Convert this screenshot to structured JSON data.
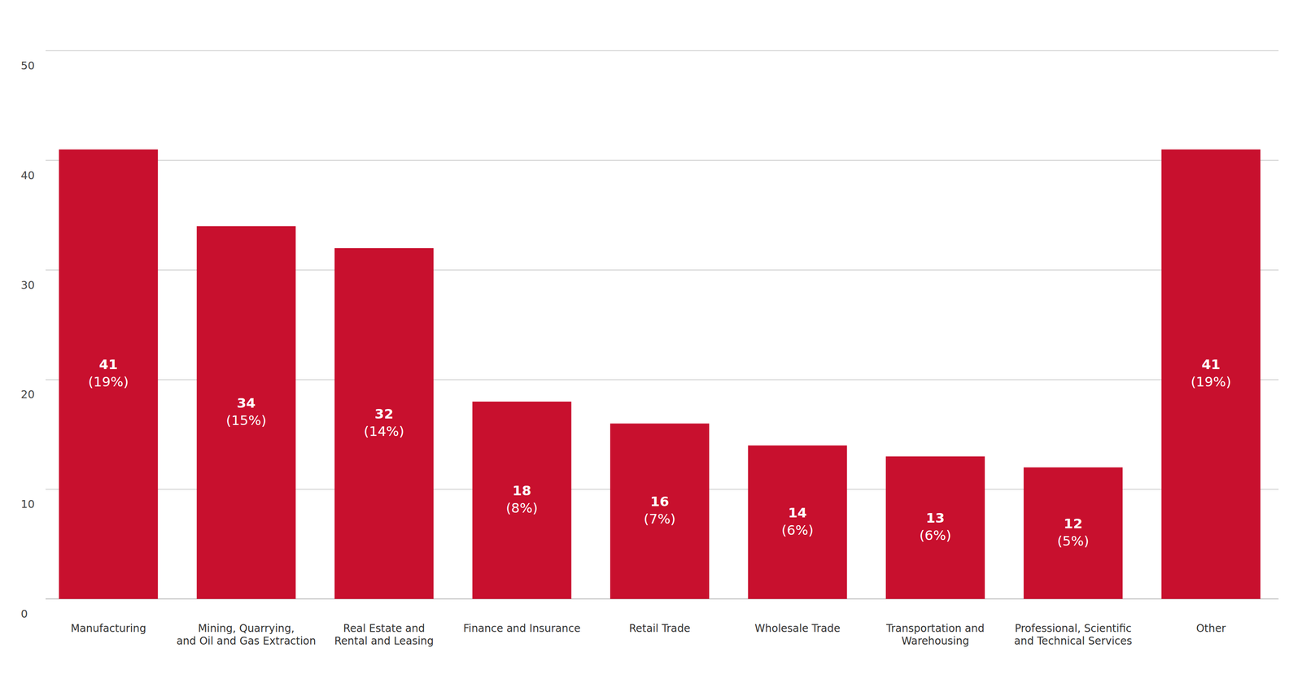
{
  "chart_data": {
    "type": "bar",
    "categories": [
      "Manufacturing",
      "Mining, Quarrying,\nand Oil and Gas Extraction",
      "Real Estate and\nRental and Leasing",
      "Finance and Insurance",
      "Retail Trade",
      "Wholesale Trade",
      "Transportation and\nWarehousing",
      "Professional, Scientific\nand Technical Services",
      "Other"
    ],
    "values": [
      41,
      34,
      32,
      18,
      16,
      14,
      13,
      12,
      41
    ],
    "share_labels": [
      "(19%)",
      "(15%)",
      "(14%)",
      "(8%)",
      "(7%)",
      "(6%)",
      "(6%)",
      "(5%)",
      "(19%)"
    ],
    "color": "#c8102e",
    "ylim": [
      0,
      50
    ],
    "yticks": [
      0,
      10,
      20,
      30,
      40,
      50
    ],
    "grid": true,
    "data_labels": true
  }
}
